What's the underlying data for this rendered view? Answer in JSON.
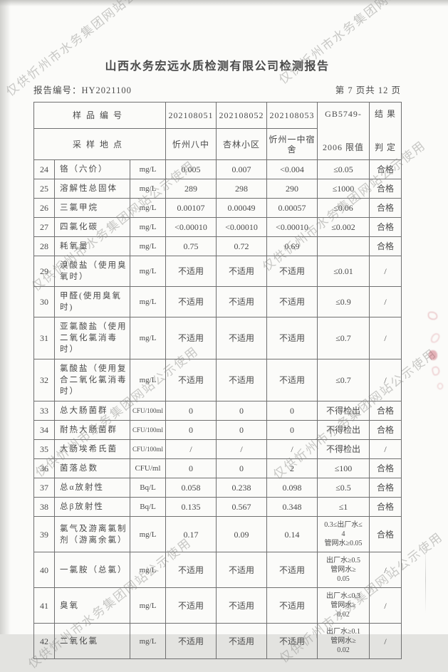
{
  "page": {
    "title": "山西水务宏远水质检测有限公司检测报告",
    "report_no": "报告编号：HY2021100",
    "page_indicator": "第 7 页共 12 页"
  },
  "watermark": {
    "text": "仅供忻州市水务集团网站公示使用"
  },
  "table": {
    "header": {
      "sample_id_label": "样品编号",
      "location_label": "采样地点",
      "sample_ids": [
        "202108051",
        "202108052",
        "202108053"
      ],
      "locations": [
        "忻州八中",
        "杏林小区",
        "忻州一中宿舍"
      ],
      "standard_line1": "GB5749-",
      "standard_line2": "2006 限值",
      "result_line1": "结 果",
      "result_line2": "判 定"
    },
    "rows": [
      {
        "no": "24",
        "name": "铬（六价）",
        "unit": "mg/L",
        "v1": "0.005",
        "v2": "0.007",
        "v3": "<0.004",
        "limit": "≤0.05",
        "result": "合格"
      },
      {
        "no": "25",
        "name": "溶解性总固体",
        "unit": "mg/L",
        "v1": "289",
        "v2": "298",
        "v3": "290",
        "limit": "≤1000",
        "result": "合格"
      },
      {
        "no": "26",
        "name": "三氯甲烷",
        "unit": "mg/L",
        "v1": "0.00107",
        "v2": "0.00049",
        "v3": "0.00057",
        "limit": "≤0.06",
        "result": "合格"
      },
      {
        "no": "27",
        "name": "四氯化碳",
        "unit": "mg/L",
        "v1": "<0.00010",
        "v2": "<0.00010",
        "v3": "<0.00010",
        "limit": "≤0.002",
        "result": "合格"
      },
      {
        "no": "28",
        "name": "耗氧量",
        "unit": "mg/L",
        "v1": "0.75",
        "v2": "0.72",
        "v3": "0.69",
        "limit": "",
        "result": "合格"
      },
      {
        "no": "29",
        "name": "溴酸盐（使用臭氧时）",
        "unit": "mg/L",
        "v1": "不适用",
        "v2": "不适用",
        "v3": "不适用",
        "limit": "≤0.01",
        "result": "/"
      },
      {
        "no": "30",
        "name": "甲醛(使用臭氧时)",
        "unit": "mg/L",
        "v1": "不适用",
        "v2": "不适用",
        "v3": "不适用",
        "limit": "≤0.9",
        "result": "/"
      },
      {
        "no": "31",
        "name": "亚氯酸盐（使用二氧化氯消毒时）",
        "unit": "mg/L",
        "v1": "不适用",
        "v2": "不适用",
        "v3": "不适用",
        "limit": "≤0.7",
        "result": "/"
      },
      {
        "no": "32",
        "name": "氯酸盐（使用复合二氧化氯消毒时）",
        "unit": "mg/L",
        "v1": "不适用",
        "v2": "不适用",
        "v3": "不适用",
        "limit": "≤0.7",
        "result": "/"
      },
      {
        "no": "33",
        "name": "总大肠菌群",
        "unit": "CFU/100ml",
        "v1": "0",
        "v2": "0",
        "v3": "0",
        "limit": "不得检出",
        "result": "合格"
      },
      {
        "no": "34",
        "name": "耐热大肠菌群",
        "unit": "CFU/100ml",
        "v1": "0",
        "v2": "0",
        "v3": "0",
        "limit": "不得检出",
        "result": "合格"
      },
      {
        "no": "35",
        "name": "大肠埃希氏菌",
        "unit": "CFU/100ml",
        "v1": "/",
        "v2": "/",
        "v3": "/",
        "limit": "不得检出",
        "result": "/"
      },
      {
        "no": "36",
        "name": "菌落总数",
        "unit": "CFU/ml",
        "v1": "0",
        "v2": "0",
        "v3": "2",
        "limit": "≤100",
        "result": "合格"
      },
      {
        "no": "37",
        "name": "总α放射性",
        "unit": "Bq/L",
        "v1": "0.058",
        "v2": "0.238",
        "v3": "0.098",
        "limit": "≤0.5",
        "result": "合格"
      },
      {
        "no": "38",
        "name": "总β放射性",
        "unit": "Bq/L",
        "v1": "0.135",
        "v2": "0.567",
        "v3": "0.348",
        "limit": "≤1",
        "result": "合格"
      },
      {
        "no": "39",
        "name": "氯气及游离氯制剂（游离余氯）",
        "unit": "mg/L",
        "v1": "0.17",
        "v2": "0.09",
        "v3": "0.14",
        "limit": "0.3≤出厂水≤\n4\n管网水≥0.05",
        "result": "合格"
      },
      {
        "no": "40",
        "name": "一氯胺（总氯）",
        "unit": "mg/L",
        "v1": "不适用",
        "v2": "不适用",
        "v3": "不适用",
        "limit": "出厂水≥0.5\n管网水≥\n0.05",
        "result": "/"
      },
      {
        "no": "41",
        "name": "臭氧",
        "unit": "mg/L",
        "v1": "不适用",
        "v2": "不适用",
        "v3": "不适用",
        "limit": "出厂水≤0.3\n管网水≥\n0.02",
        "result": "/"
      },
      {
        "no": "42",
        "name": "二氧化氯",
        "unit": "mg/L",
        "v1": "不适用",
        "v2": "不适用",
        "v3": "不适用",
        "limit": "出厂水≥0.1\n管网水≥\n0.02",
        "result": "/"
      }
    ]
  }
}
